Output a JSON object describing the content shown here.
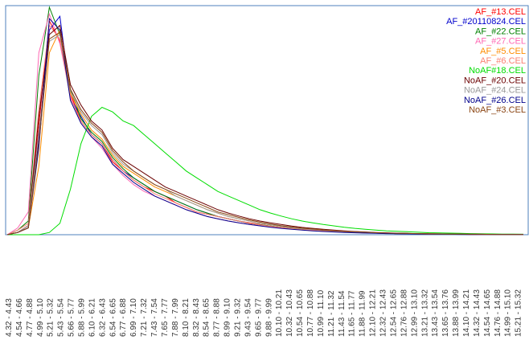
{
  "chart_data": {
    "type": "line",
    "title": "",
    "xlabel": "",
    "ylabel": "",
    "grid": false,
    "legend_position": "top-right",
    "categories": [
      "4.32 - 4.43",
      "4.54 - 4.66",
      "4.77 - 4.88",
      "4.99 - 5.10",
      "5.21 - 5.32",
      "5.43 - 5.54",
      "5.66 - 5.77",
      "5.88 - 5.99",
      "6.10 - 6.21",
      "6.32 - 6.43",
      "6.54 - 6.65",
      "6.77 - 6.88",
      "6.99 - 7.10",
      "7.21 - 7.32",
      "7.43 - 7.54",
      "7.65 - 7.77",
      "7.88 - 7.99",
      "8.10 - 8.21",
      "8.32 - 8.43",
      "8.54 - 8.65",
      "8.77 - 8.88",
      "8.99 - 9.10",
      "9.21 - 9.32",
      "9.43 - 9.54",
      "9.65 - 9.77",
      "9.88 - 9.99",
      "10.10 - 10.21",
      "10.32 - 10.43",
      "10.54 - 10.65",
      "10.77 - 10.88",
      "10.99 - 11.10",
      "11.21 - 11.32",
      "11.43 - 11.54",
      "11.65 - 11.77",
      "11.88 - 11.99",
      "12.10 - 12.21",
      "12.32 - 12.43",
      "12.54 - 12.65",
      "12.76 - 12.88",
      "12.99 - 13.10",
      "13.21 - 13.32",
      "13.43 - 13.54",
      "13.65 - 13.76",
      "13.88 - 13.99",
      "14.10 - 14.21",
      "14.32 - 14.43",
      "14.54 - 14.65",
      "14.76 - 14.88",
      "14.99 - 15.10",
      "15.21 - 15.32"
    ],
    "ylim": [
      0,
      100
    ],
    "series": [
      {
        "name": "AF_#13.CEL",
        "color": "#ff0000",
        "values": [
          0,
          1,
          4,
          48,
          94,
          85,
          62,
          50,
          44,
          40,
          32,
          28,
          24,
          21,
          19,
          17,
          14,
          12,
          10,
          9,
          8,
          7,
          6,
          5.2,
          4.5,
          3.8,
          3.2,
          2.7,
          2.3,
          2,
          1.7,
          1.4,
          1.2,
          1,
          0.8,
          0.7,
          0.6,
          0.5,
          0.45,
          0.4,
          0.3,
          0.25,
          0.2,
          0.2,
          0.15,
          0.1,
          0.1,
          0.1,
          0.1,
          0.1
        ]
      },
      {
        "name": "AF_#20110824.CEL",
        "color": "#0000cc",
        "values": [
          0,
          1,
          3,
          42,
          90,
          96,
          60,
          52,
          44,
          40,
          33,
          28,
          25,
          22,
          19,
          17,
          15,
          13,
          11,
          9.5,
          8,
          7,
          6,
          5,
          4.3,
          3.7,
          3.2,
          2.8,
          2.4,
          2,
          1.7,
          1.4,
          1.2,
          1,
          0.8,
          0.7,
          0.6,
          0.5,
          0.45,
          0.4,
          0.3,
          0.25,
          0.2,
          0.2,
          0.15,
          0.1,
          0.1,
          0.1,
          0.1,
          0.1
        ]
      },
      {
        "name": "AF_#22.CEL",
        "color": "#008000",
        "values": [
          0,
          2,
          6,
          70,
          100,
          88,
          64,
          51,
          45,
          41,
          34,
          29,
          25,
          22,
          19,
          17,
          15,
          13,
          11,
          9.5,
          8,
          7,
          6,
          5,
          4.4,
          3.8,
          3.3,
          2.8,
          2.4,
          2,
          1.7,
          1.4,
          1.2,
          1,
          0.8,
          0.7,
          0.6,
          0.5,
          0.45,
          0.4,
          0.3,
          0.25,
          0.2,
          0.2,
          0.15,
          0.1,
          0.1,
          0.1,
          0.1,
          0.1
        ]
      },
      {
        "name": "AF_#27.CEL",
        "color": "#ff69b4",
        "values": [
          0,
          3,
          10,
          80,
          97,
          84,
          61,
          49,
          43,
          38,
          31,
          26,
          22,
          19,
          17,
          15,
          13,
          11,
          9.5,
          8,
          7,
          6,
          5.2,
          4.5,
          3.9,
          3.4,
          2.9,
          2.5,
          2.1,
          1.8,
          1.5,
          1.3,
          1.1,
          0.9,
          0.8,
          0.7,
          0.6,
          0.5,
          0.4,
          0.35,
          0.3,
          0.25,
          0.2,
          0.2,
          0.15,
          0.1,
          0.1,
          0.1,
          0.1,
          0.1
        ]
      },
      {
        "name": "AF_#5.CEL",
        "color": "#ff8c00",
        "values": [
          0,
          1,
          3,
          30,
          80,
          90,
          62,
          53,
          46,
          42,
          35,
          30,
          27,
          24,
          21,
          19,
          17,
          15,
          13,
          11,
          9.5,
          8,
          7,
          6,
          5,
          4.3,
          3.7,
          3.1,
          2.7,
          2.3,
          2,
          1.7,
          1.4,
          1.2,
          1,
          0.85,
          0.7,
          0.6,
          0.5,
          0.45,
          0.4,
          0.3,
          0.25,
          0.2,
          0.2,
          0.15,
          0.1,
          0.1,
          0.1,
          0.1
        ]
      },
      {
        "name": "AF_#6.CEL",
        "color": "#fa8072",
        "values": [
          0,
          2,
          5,
          55,
          92,
          86,
          60,
          50,
          44,
          40,
          33,
          28,
          24,
          21,
          18,
          16,
          14,
          12,
          10,
          9,
          8,
          7,
          6,
          5,
          4.3,
          3.7,
          3.2,
          2.7,
          2.3,
          2,
          1.7,
          1.4,
          1.2,
          1,
          0.8,
          0.7,
          0.6,
          0.5,
          0.45,
          0.4,
          0.3,
          0.25,
          0.2,
          0.2,
          0.15,
          0.1,
          0.1,
          0.1,
          0.1,
          0.1
        ]
      },
      {
        "name": "NoAF#18.CEL",
        "color": "#00dd00",
        "values": [
          0,
          0,
          0,
          0,
          1,
          5,
          20,
          40,
          52,
          56,
          54,
          50,
          48,
          44,
          40,
          36,
          32,
          28,
          25,
          22,
          19,
          17,
          15,
          13,
          11,
          9.5,
          8.2,
          7,
          6,
          5.2,
          4.5,
          3.9,
          3.3,
          2.8,
          2.4,
          2,
          1.7,
          1.5,
          1.3,
          1.1,
          0.9,
          0.8,
          0.7,
          0.6,
          0.5,
          0.4,
          0.35,
          0.3,
          0.25,
          0.2
        ]
      },
      {
        "name": "NoAF_#20.CEL",
        "color": "#6b0000",
        "values": [
          0,
          1,
          4,
          52,
          88,
          92,
          66,
          57,
          50,
          46,
          38,
          33,
          30,
          27,
          24,
          21,
          19,
          17,
          15,
          13,
          11,
          9.5,
          8.2,
          7,
          6,
          5.2,
          4.5,
          3.8,
          3.2,
          2.8,
          2.4,
          2,
          1.7,
          1.4,
          1.2,
          1,
          0.85,
          0.7,
          0.6,
          0.5,
          0.45,
          0.4,
          0.3,
          0.25,
          0.2,
          0.2,
          0.15,
          0.1,
          0.1,
          0.1
        ]
      },
      {
        "name": "NoAF_#24.CEL",
        "color": "#999999",
        "values": [
          0,
          1,
          4,
          45,
          85,
          88,
          63,
          54,
          48,
          44,
          36,
          31,
          28,
          25,
          22,
          20,
          17,
          15,
          13,
          11,
          9.5,
          8,
          7,
          6,
          5,
          4.3,
          3.7,
          3.1,
          2.7,
          2.3,
          2,
          1.7,
          1.4,
          1.2,
          1,
          0.85,
          0.7,
          0.6,
          0.5,
          0.45,
          0.4,
          0.3,
          0.25,
          0.2,
          0.2,
          0.15,
          0.1,
          0.1,
          0.1,
          0.1
        ]
      },
      {
        "name": "NoAF_#26.CEL",
        "color": "#00008b",
        "values": [
          0,
          1,
          3,
          38,
          95,
          90,
          59,
          49,
          43,
          39,
          31,
          27,
          23,
          20,
          17,
          15,
          13,
          11,
          9.5,
          8,
          7,
          6,
          5.2,
          4.5,
          3.9,
          3.3,
          2.8,
          2.4,
          2,
          1.7,
          1.4,
          1.2,
          1,
          0.85,
          0.7,
          0.6,
          0.5,
          0.45,
          0.4,
          0.3,
          0.25,
          0.2,
          0.2,
          0.15,
          0.1,
          0.1,
          0.1,
          0.1,
          0.1,
          0.1
        ]
      },
      {
        "name": "NoAF_#3.CEL",
        "color": "#8b4513",
        "values": [
          0,
          1,
          3,
          40,
          86,
          89,
          64,
          55,
          49,
          45,
          37,
          32,
          28,
          25,
          22,
          20,
          18,
          16,
          14,
          12,
          10,
          8.8,
          7.6,
          6.5,
          5.5,
          4.7,
          4,
          3.4,
          2.9,
          2.5,
          2.1,
          1.8,
          1.5,
          1.3,
          1.1,
          0.9,
          0.75,
          0.65,
          0.55,
          0.45,
          0.4,
          0.35,
          0.3,
          0.25,
          0.2,
          0.2,
          0.15,
          0.1,
          0.1,
          0.1
        ]
      }
    ]
  }
}
